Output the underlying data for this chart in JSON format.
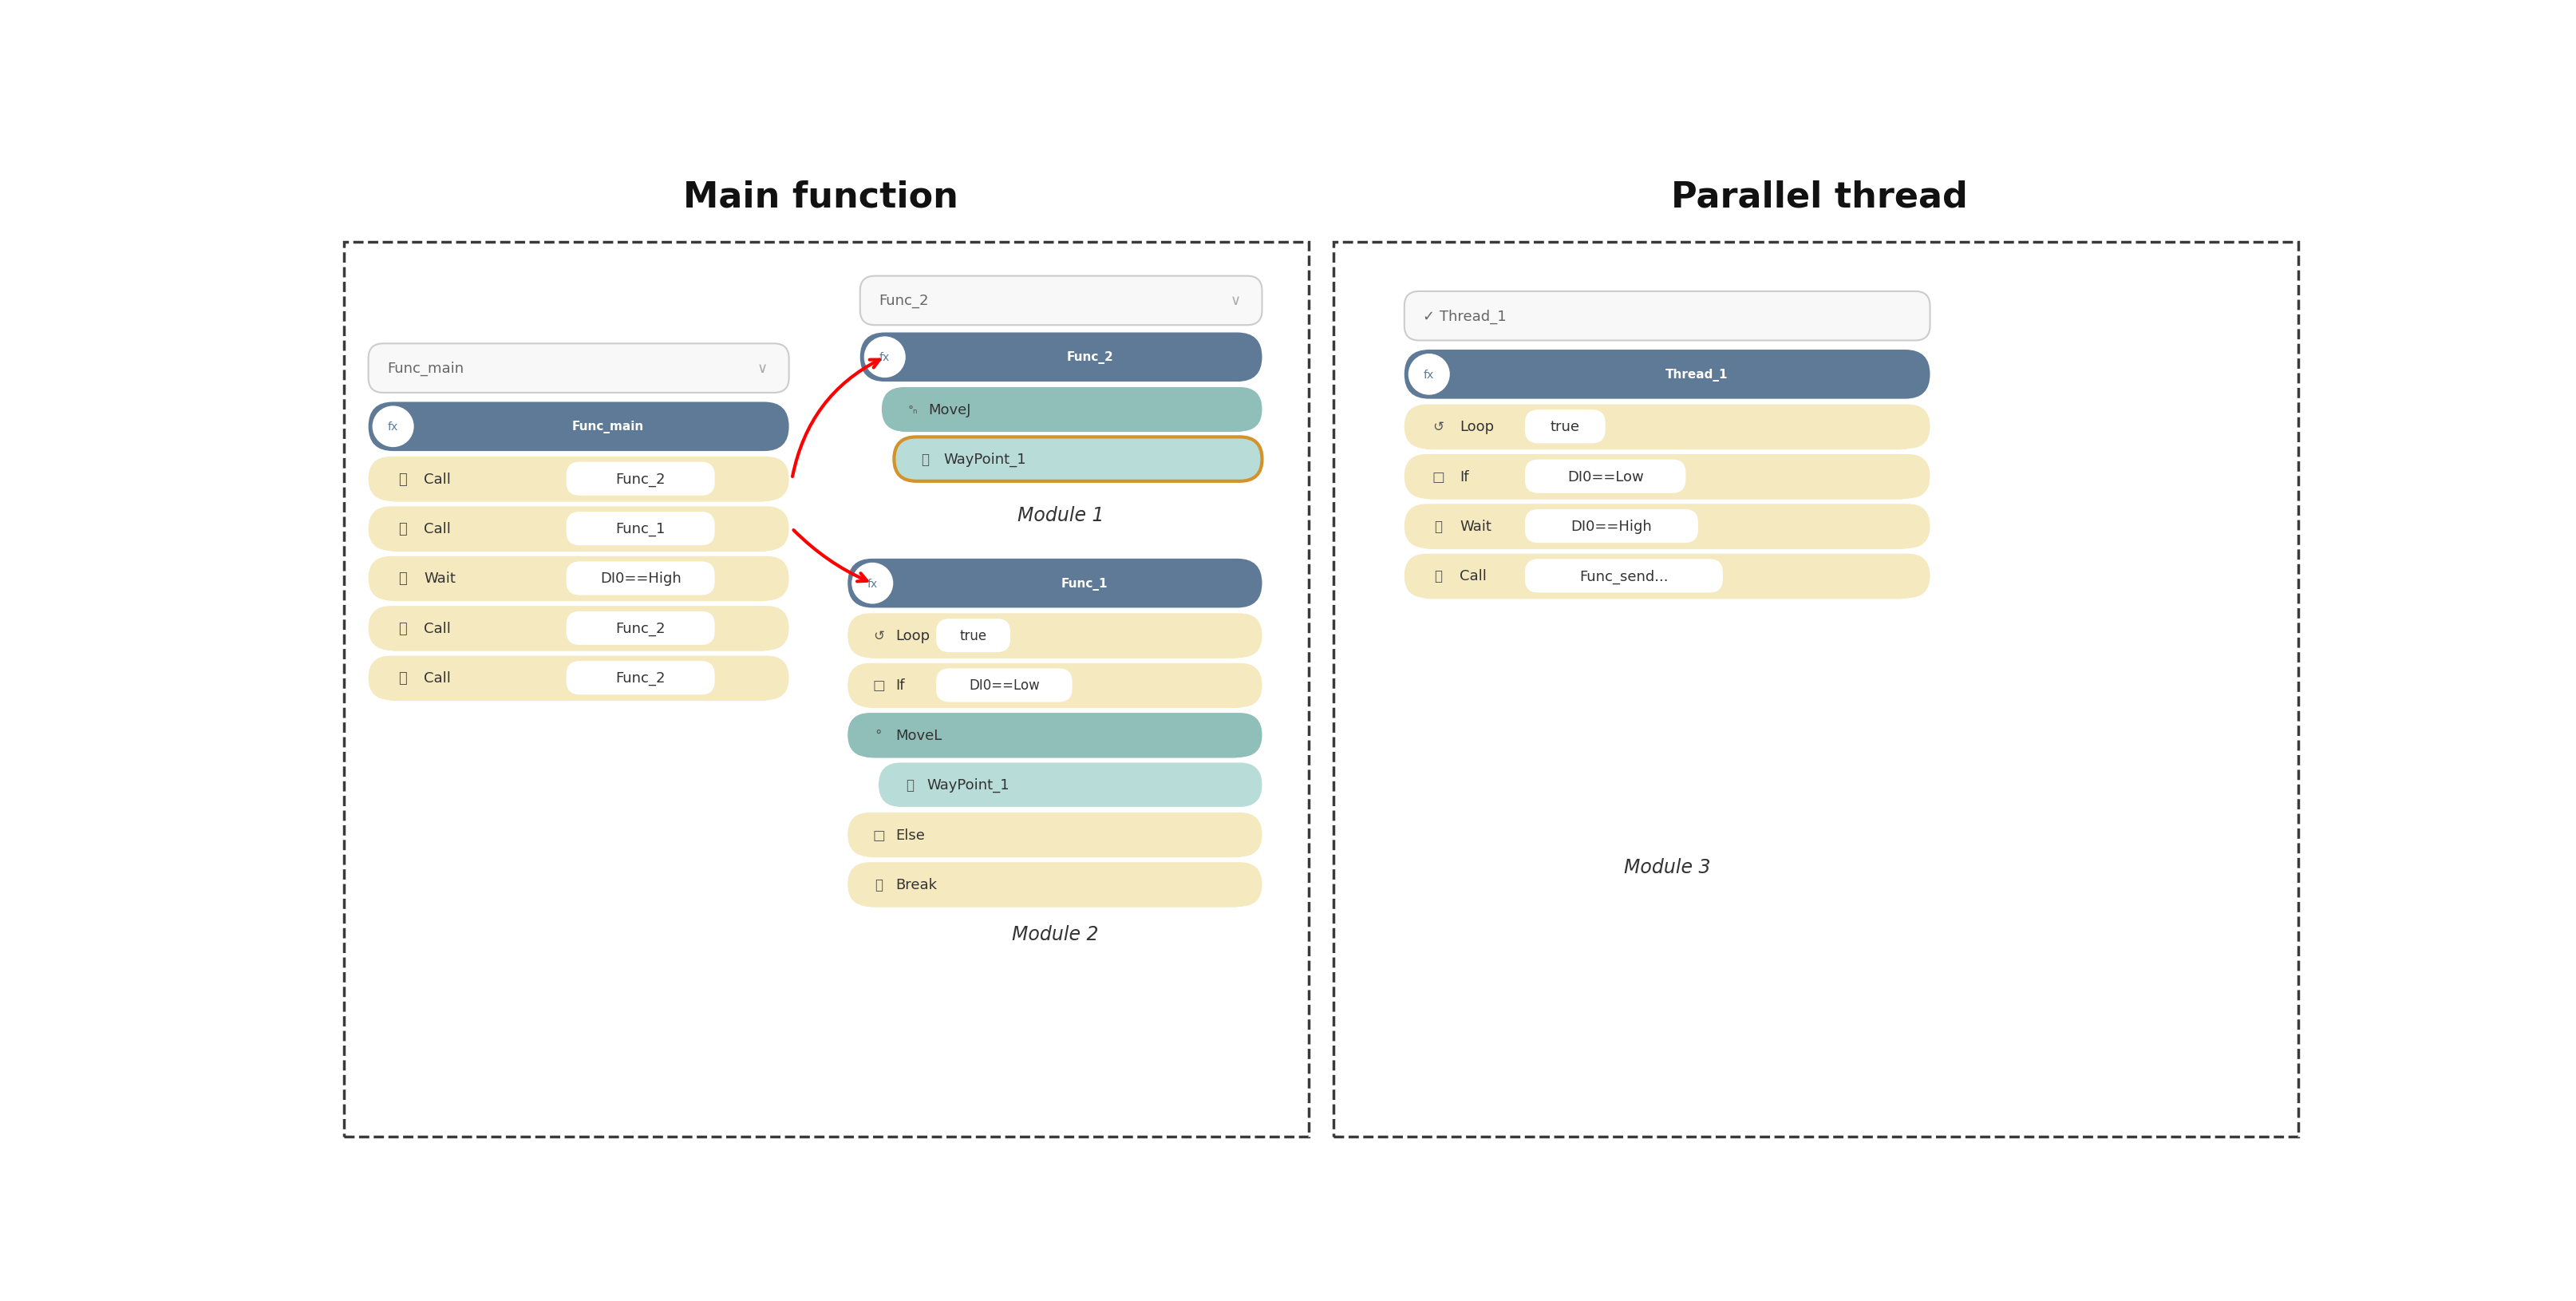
{
  "title_left": "Main function",
  "title_right": "Parallel thread",
  "bg_color": "#ffffff",
  "dark_color": "#5e7a96",
  "teal_color": "#8fbfb8",
  "light_teal_color": "#b8dcd8",
  "yellow_color": "#f5e9c0",
  "orange_border": "#d4922a",
  "white": "#ffffff",
  "border_dash": "#3a3a3a",
  "text_dark": "#333333",
  "text_mid": "#555555",
  "text_light": "#888888",
  "module1_label": "Module 1",
  "module2_label": "Module 2",
  "module3_label": "Module 3",
  "fig_w": 32.28,
  "fig_h": 16.31
}
